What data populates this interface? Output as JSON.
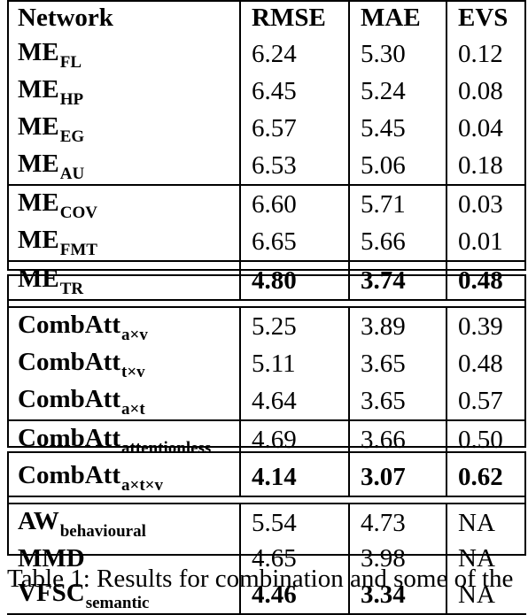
{
  "header": [
    "Network",
    "RMSE",
    "MAE",
    "EVS"
  ],
  "rows": [
    {
      "base": "ME",
      "sub": "FL",
      "rmse": "6.24",
      "mae": "5.30",
      "evs": "0.12"
    },
    {
      "base": "ME",
      "sub": "HP",
      "rmse": "6.45",
      "mae": "5.24",
      "evs": "0.08"
    },
    {
      "base": "ME",
      "sub": "EG",
      "rmse": "6.57",
      "mae": "5.45",
      "evs": "0.04"
    },
    {
      "base": "ME",
      "sub": "AU",
      "rmse": "6.53",
      "mae": "5.06",
      "evs": "0.18"
    },
    {
      "base": "ME",
      "sub": "COV",
      "rmse": "6.60",
      "mae": "5.71",
      "evs": "0.03"
    },
    {
      "base": "ME",
      "sub": "FMT",
      "rmse": "6.65",
      "mae": "5.66",
      "evs": "0.01"
    },
    {
      "base": "ME",
      "sub": "TR",
      "rmse": "4.80",
      "mae": "3.74",
      "evs": "0.48"
    },
    {
      "base": "CombAtt",
      "sub": "a×v",
      "rmse": "5.25",
      "mae": "3.89",
      "evs": "0.39"
    },
    {
      "base": "CombAtt",
      "sub": "t×v",
      "rmse": "5.11",
      "mae": "3.65",
      "evs": "0.48"
    },
    {
      "base": "CombAtt",
      "sub": "a×t",
      "rmse": "4.64",
      "mae": "3.65",
      "evs": "0.57"
    },
    {
      "base": "CombAtt",
      "sub": "attentionless",
      "rmse": "4.69",
      "mae": "3.66",
      "evs": "0.50"
    },
    {
      "base": "CombAtt",
      "sub": "a×t×v",
      "rmse": "4.14",
      "mae": "3.07",
      "evs": "0.62"
    },
    {
      "base": "AW",
      "sub": "behavioural",
      "rmse": "5.54",
      "mae": "4.73",
      "evs": "NA"
    },
    {
      "base": "MMD",
      "sub": "",
      "rmse": "4.65",
      "mae": "3.98",
      "evs": "NA"
    },
    {
      "base": "VFSC",
      "sub": "semantic",
      "rmse": "4.46",
      "mae": "3.34",
      "evs": "NA"
    }
  ],
  "caption": "Table 1: Results for combination and some of the"
}
